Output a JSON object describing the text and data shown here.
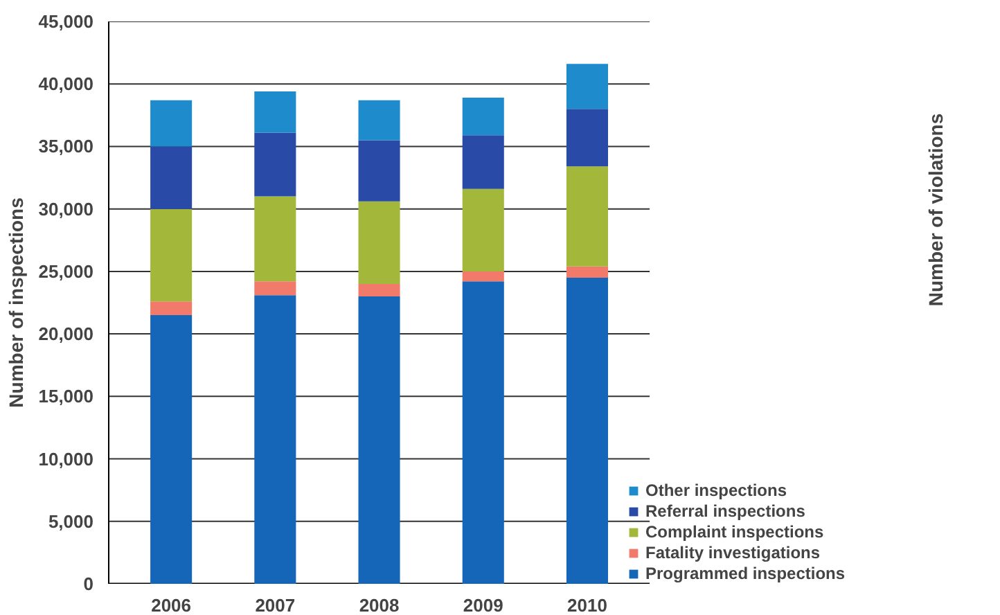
{
  "chart_data": {
    "type": "bar",
    "stacked": true,
    "ylabel": "Number of inspections",
    "annotations": [
      "Number of violations"
    ],
    "categories": [
      "2006",
      "2007",
      "2008",
      "2009",
      "2010"
    ],
    "series": [
      {
        "name": "Programmed inspections",
        "color": "#1565b8",
        "values": [
          21500,
          23100,
          23000,
          24200,
          24500
        ]
      },
      {
        "name": "Fatality investigations",
        "color": "#f27a6a",
        "values": [
          1100,
          1100,
          1000,
          800,
          900
        ]
      },
      {
        "name": "Complaint inspections",
        "color": "#a3b83a",
        "values": [
          7400,
          6800,
          6600,
          6600,
          8000
        ]
      },
      {
        "name": "Referral inspections",
        "color": "#2a4aa8",
        "values": [
          5000,
          5100,
          4900,
          4300,
          4600
        ]
      },
      {
        "name": "Other inspections",
        "color": "#1e8ccc",
        "values": [
          3700,
          3300,
          3200,
          3000,
          3600
        ]
      }
    ],
    "ylim": [
      0,
      45000
    ],
    "yticks": [
      0,
      {
        "value": 5000,
        "label": "5,000"
      },
      {
        "value": 10000,
        "label": "10,000"
      },
      {
        "value": 15000,
        "label": "15,000"
      },
      {
        "value": 20000,
        "label": "20,000"
      },
      {
        "value": 25000,
        "label": "25,000"
      },
      {
        "value": 30000,
        "label": "30,000"
      },
      {
        "value": 35000,
        "label": "35,000"
      },
      {
        "value": 40000,
        "label": "40,000"
      },
      {
        "value": 45000,
        "label": "45,000"
      }
    ],
    "grid": "y",
    "legend": "bottom right"
  }
}
